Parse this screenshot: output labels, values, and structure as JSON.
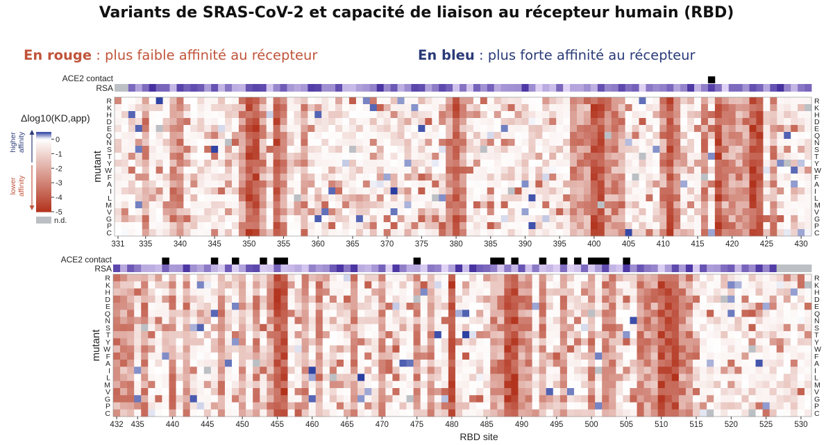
{
  "title": "Variants de SRAS-CoV-2 et capacité de liaison au récepteur humain (RBD)",
  "legend_notes": {
    "red_strong": "En rouge",
    "red_rest": " : plus faible affinité au récepteur",
    "blue_strong": "En bleu",
    "blue_rest": " : plus forte affinité au récepteur"
  },
  "colors": {
    "red": "#c0543a",
    "blue": "#2a3b78",
    "nd": "#bcc0c4",
    "contact": "#000000"
  },
  "chart_data": {
    "type": "heatmap",
    "xlabel": "RBD site",
    "ylabel": "mutant",
    "row_labels": [
      "R",
      "K",
      "H",
      "D",
      "E",
      "Q",
      "N",
      "S",
      "T",
      "Y",
      "W",
      "F",
      "A",
      "I",
      "L",
      "M",
      "V",
      "G",
      "P",
      "C"
    ],
    "track_labels": {
      "contact": "ACE2 contact",
      "rsa": "RSA"
    },
    "colorbar": {
      "label": "Δlog10(KD,app)",
      "ticks": [
        0,
        -1,
        -2,
        -3,
        -4,
        -5
      ],
      "range": [
        -5,
        0.5
      ],
      "higher_label": [
        "higher",
        "affinity"
      ],
      "lower_label": [
        "lower",
        "affinity"
      ],
      "nd_label": "n.d."
    },
    "panels": [
      {
        "sites_range": [
          331,
          431
        ],
        "xticks": [
          331,
          335,
          340,
          345,
          350,
          355,
          360,
          365,
          370,
          375,
          380,
          385,
          390,
          395,
          400,
          405,
          410,
          415,
          420,
          425,
          430
        ],
        "ace2_contact_sites": [
          417
        ],
        "rsa_missing_sites": [
          331,
          332
        ],
        "strong_sites": [
          350,
          351,
          354,
          380,
          400,
          401,
          411,
          418,
          423,
          424
        ],
        "moderate_sites": [
          335,
          339,
          340,
          349,
          352,
          355,
          358,
          379,
          381,
          397,
          398,
          399,
          402,
          403,
          404,
          410,
          412,
          416,
          419,
          420,
          421,
          422,
          426
        ]
      },
      {
        "sites_range": [
          432,
          531
        ],
        "xticks": [
          432,
          435,
          440,
          445,
          450,
          455,
          460,
          465,
          470,
          475,
          480,
          485,
          490,
          495,
          500,
          505,
          510,
          515,
          520,
          525,
          530
        ],
        "ace2_contact_sites": [
          439,
          446,
          449,
          453,
          455,
          456,
          475,
          486,
          487,
          489,
          493,
          496,
          498,
          500,
          501,
          502,
          505
        ],
        "rsa_missing_sites": [
          527,
          528,
          529,
          530,
          531
        ],
        "strong_sites": [
          455,
          456,
          480,
          488,
          489,
          510,
          511,
          512
        ],
        "moderate_sites": [
          432,
          433,
          434,
          436,
          440,
          442,
          447,
          450,
          452,
          454,
          459,
          461,
          466,
          470,
          475,
          477,
          486,
          487,
          490,
          491,
          493,
          496,
          500,
          502,
          503,
          507,
          508,
          509,
          513,
          514
        ]
      }
    ]
  }
}
